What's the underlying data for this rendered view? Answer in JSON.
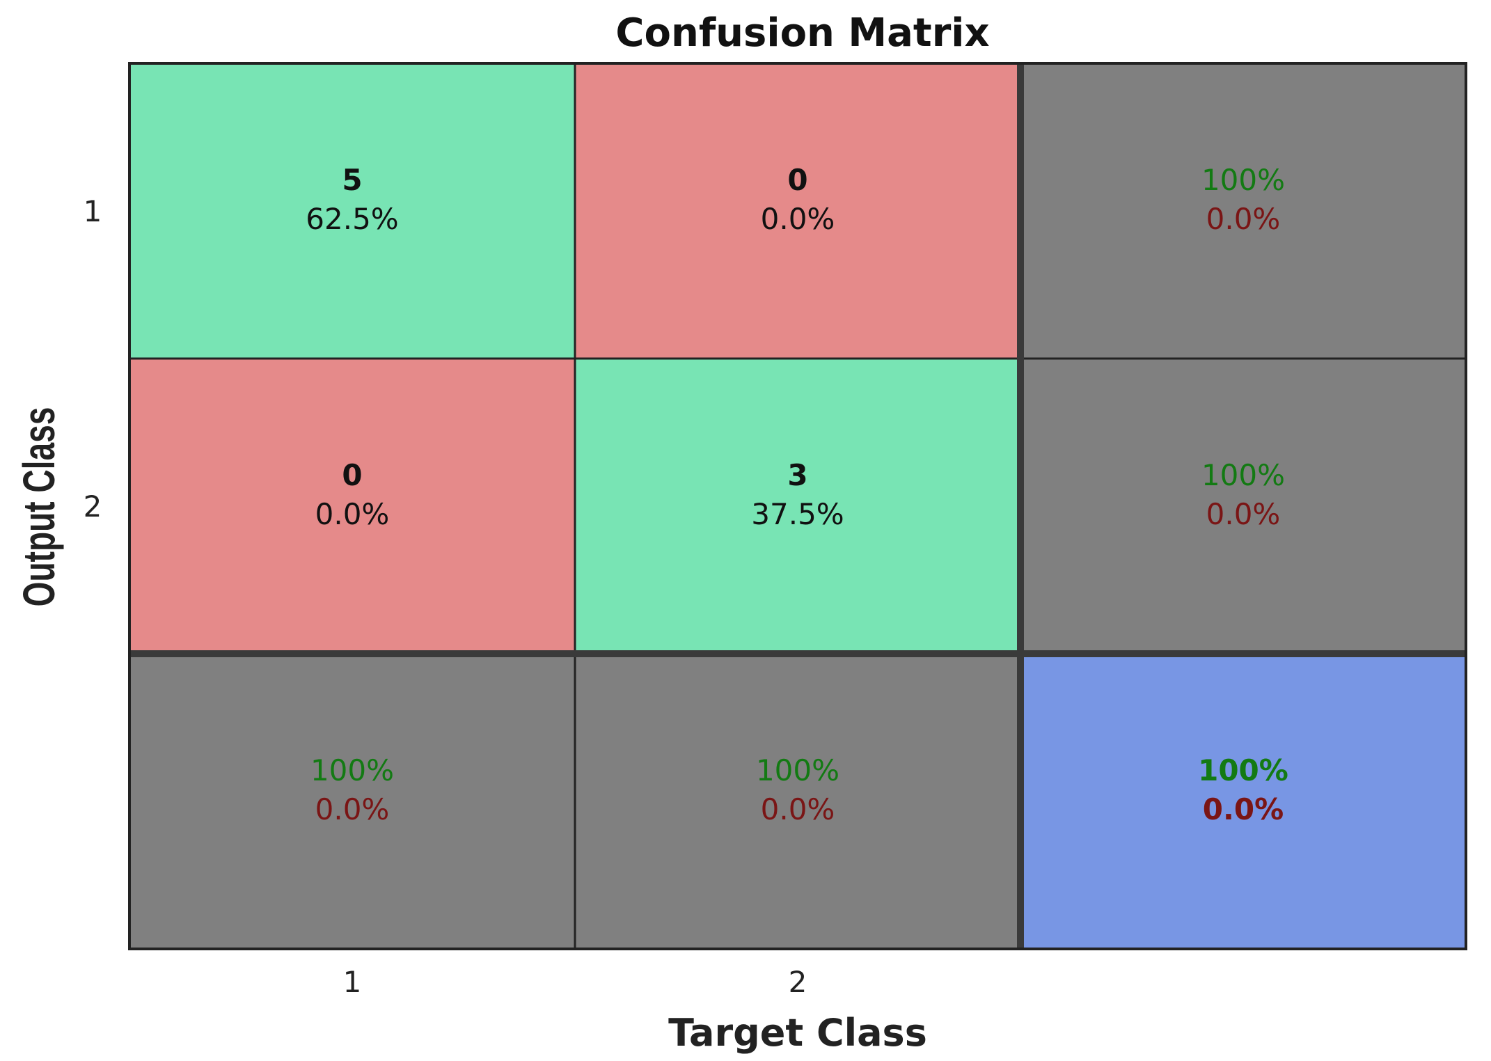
{
  "chart_data": {
    "type": "heatmap",
    "title": "Confusion Matrix",
    "xlabel": "Target Class",
    "ylabel": "Output Class",
    "x_tick_labels": [
      "1",
      "2"
    ],
    "y_tick_labels": [
      "1",
      "2"
    ],
    "matrix": [
      [
        {
          "count": "5",
          "percent": "62.5%",
          "kind": "correct"
        },
        {
          "count": "0",
          "percent": "0.0%",
          "kind": "error"
        }
      ],
      [
        {
          "count": "0",
          "percent": "0.0%",
          "kind": "error"
        },
        {
          "count": "3",
          "percent": "37.5%",
          "kind": "correct"
        }
      ]
    ],
    "row_summary": [
      {
        "correct": "100%",
        "error": "0.0%"
      },
      {
        "correct": "100%",
        "error": "0.0%"
      }
    ],
    "col_summary": [
      {
        "correct": "100%",
        "error": "0.0%"
      },
      {
        "correct": "100%",
        "error": "0.0%"
      }
    ],
    "overall": {
      "correct": "100%",
      "error": "0.0%"
    },
    "colors": {
      "correct": "#78e4b4",
      "error": "#e58a8a",
      "summary": "#808080",
      "overall": "#7896e4",
      "green_text": "#137a13",
      "red_text": "#7a1515"
    }
  }
}
